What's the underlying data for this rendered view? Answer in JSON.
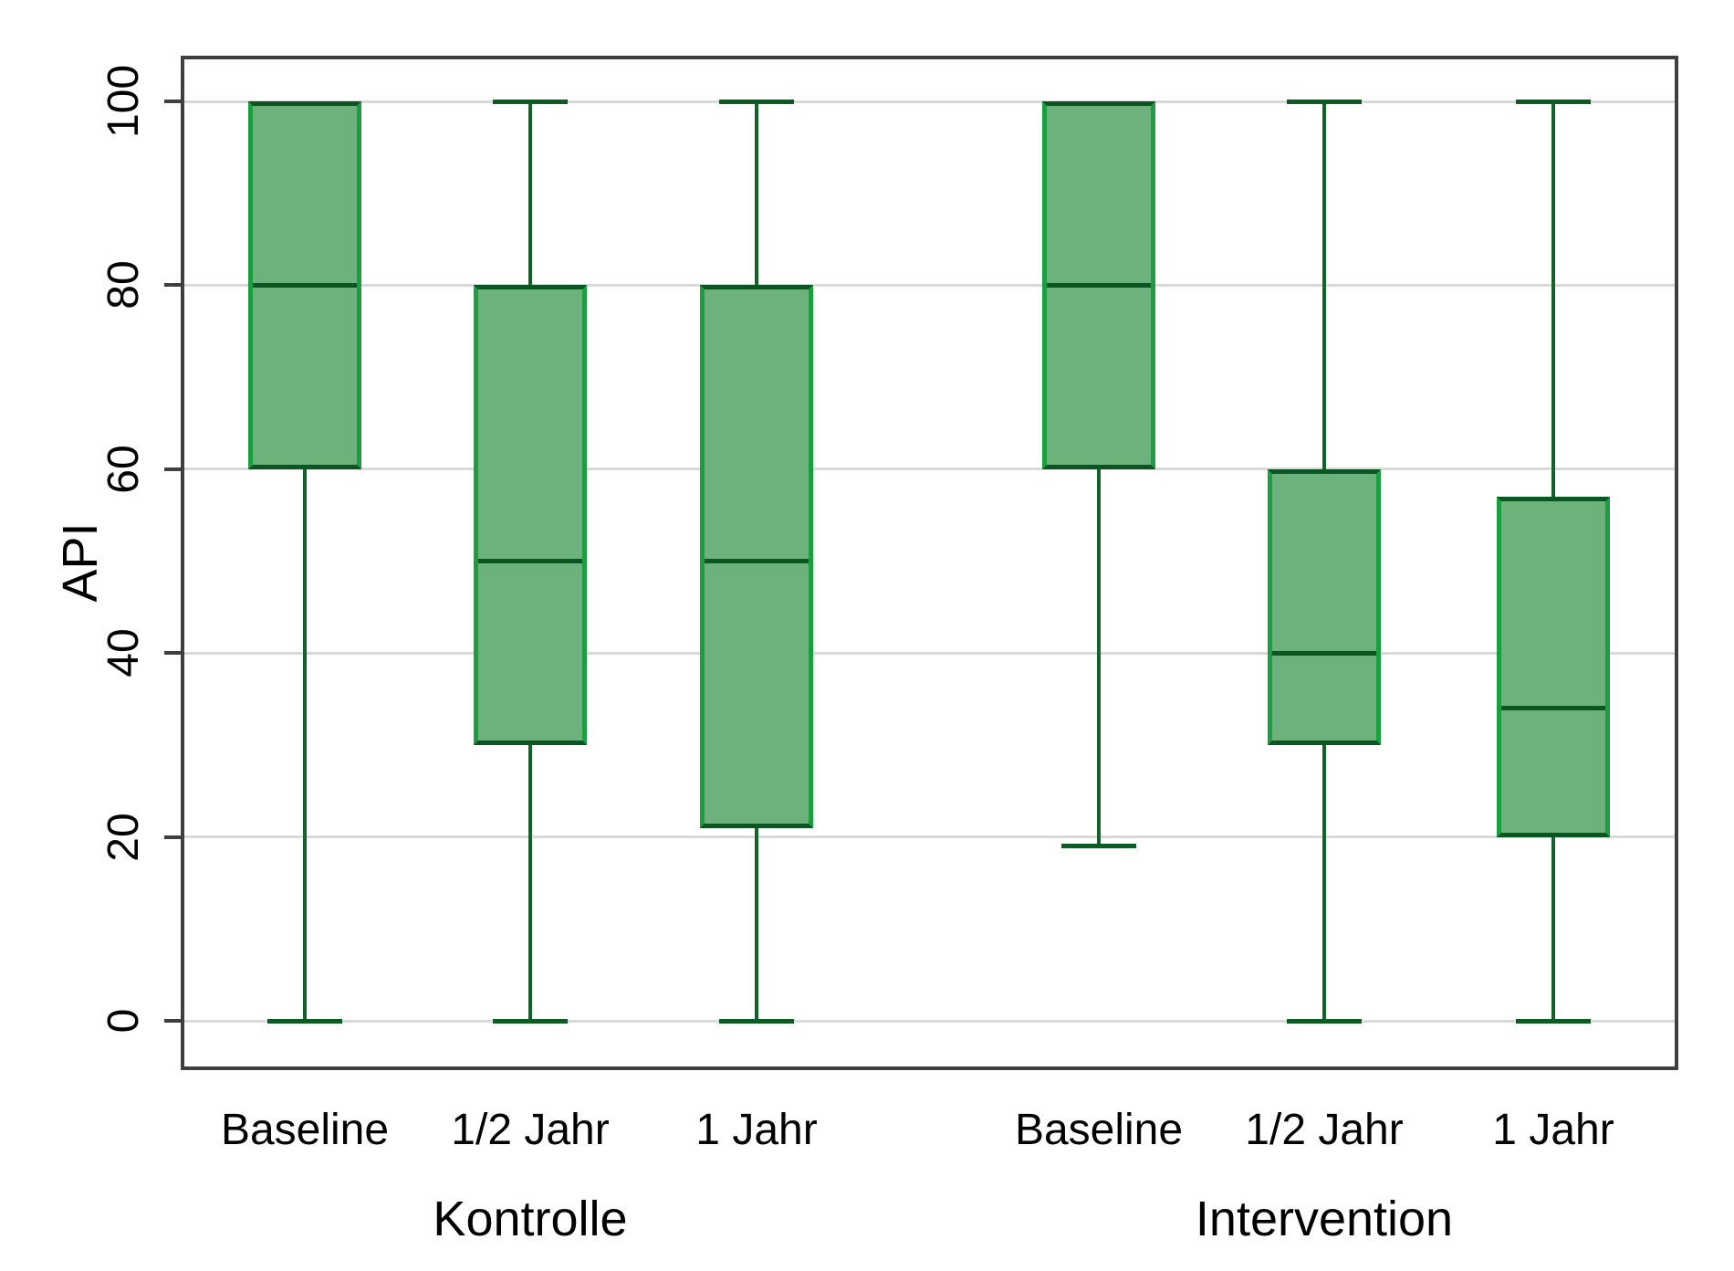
{
  "chart_data": {
    "type": "box",
    "title": "",
    "ylabel": "API",
    "xlabel": "",
    "ylim": [
      0,
      100
    ],
    "yticks": [
      0,
      20,
      40,
      60,
      80,
      100
    ],
    "grid": "horizontal",
    "legend": "none",
    "groups": [
      {
        "label": "Kontrolle",
        "boxes": [
          {
            "label": "Baseline",
            "whisker_low": 0,
            "q1": 60,
            "median": 80,
            "q3": 100,
            "whisker_high": 100
          },
          {
            "label": "1/2 Jahr",
            "whisker_low": 0,
            "q1": 30,
            "median": 50,
            "q3": 80,
            "whisker_high": 100
          },
          {
            "label": "1 Jahr",
            "whisker_low": 0,
            "q1": 21,
            "median": 50,
            "q3": 80,
            "whisker_high": 100
          }
        ]
      },
      {
        "label": "Intervention",
        "boxes": [
          {
            "label": "Baseline",
            "whisker_low": 19,
            "q1": 60,
            "median": 80,
            "q3": 100,
            "whisker_high": 100
          },
          {
            "label": "1/2 Jahr",
            "whisker_low": 0,
            "q1": 30,
            "median": 40,
            "q3": 60,
            "whisker_high": 100
          },
          {
            "label": "1 Jahr",
            "whisker_low": 0,
            "q1": 20,
            "median": 34,
            "q3": 57,
            "whisker_high": 100
          }
        ]
      }
    ],
    "colors": {
      "box_fill": "#6db17c",
      "box_edge_vertical": "#1b9e3f",
      "box_edge_horizontal": "#0a5522",
      "median": "#0a5522",
      "whisker": "#116328",
      "grid": "#d9d9d9",
      "axis": "#3f3f3f",
      "text": "#000000",
      "background": "#ffffff"
    }
  }
}
